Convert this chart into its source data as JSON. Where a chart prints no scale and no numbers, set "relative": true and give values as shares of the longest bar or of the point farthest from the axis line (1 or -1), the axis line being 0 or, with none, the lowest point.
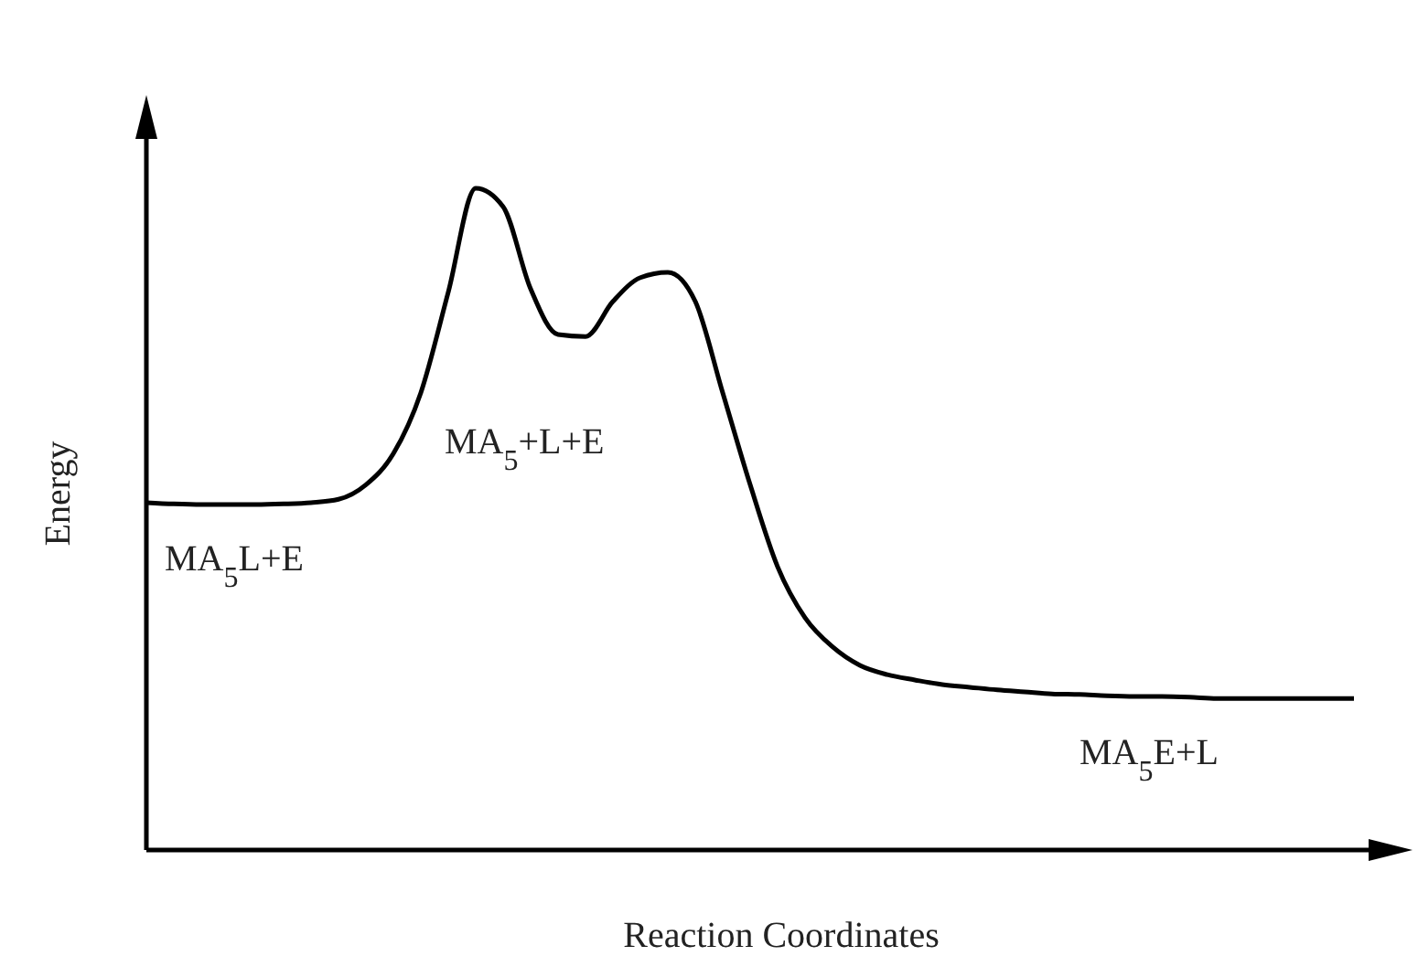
{
  "chart_data": {
    "type": "line",
    "relative": true,
    "xlabel": "Reaction Coordinates",
    "ylabel": "Energy",
    "categories": [
      null,
      null,
      null,
      null,
      null,
      null,
      null,
      null,
      null,
      null,
      null,
      null,
      null,
      null,
      null,
      null,
      null,
      null,
      null,
      null,
      null,
      null,
      null,
      null,
      null,
      null,
      null,
      null,
      null,
      null,
      null,
      null,
      null,
      null,
      null,
      null,
      null,
      null,
      null,
      null,
      null,
      null,
      null,
      null,
      null
    ],
    "series": [
      {
        "color": "#000000",
        "values": [
          0.525,
          0.523,
          0.522,
          0.522,
          0.522,
          0.523,
          0.525,
          0.53,
          0.552,
          0.599,
          0.691,
          0.843,
          1,
          0.972,
          0.848,
          0.779,
          0.776,
          0.829,
          0.865,
          0.873,
          0.829,
          0.691,
          0.552,
          0.428,
          0.351,
          0.307,
          0.279,
          0.265,
          0.257,
          0.25,
          0.246,
          0.242,
          0.239,
          0.236,
          0.235,
          0.233,
          0.232,
          0.232,
          0.231,
          0.229,
          0.229,
          0.229,
          0.229,
          0.229,
          0.229
        ]
      }
    ],
    "annotations": [
      "MA$_{5}$L+E",
      "MA$_{5}$+L+E",
      "MA$_{5}$E+L"
    ],
    "marker": "none",
    "line_style": "solid"
  }
}
